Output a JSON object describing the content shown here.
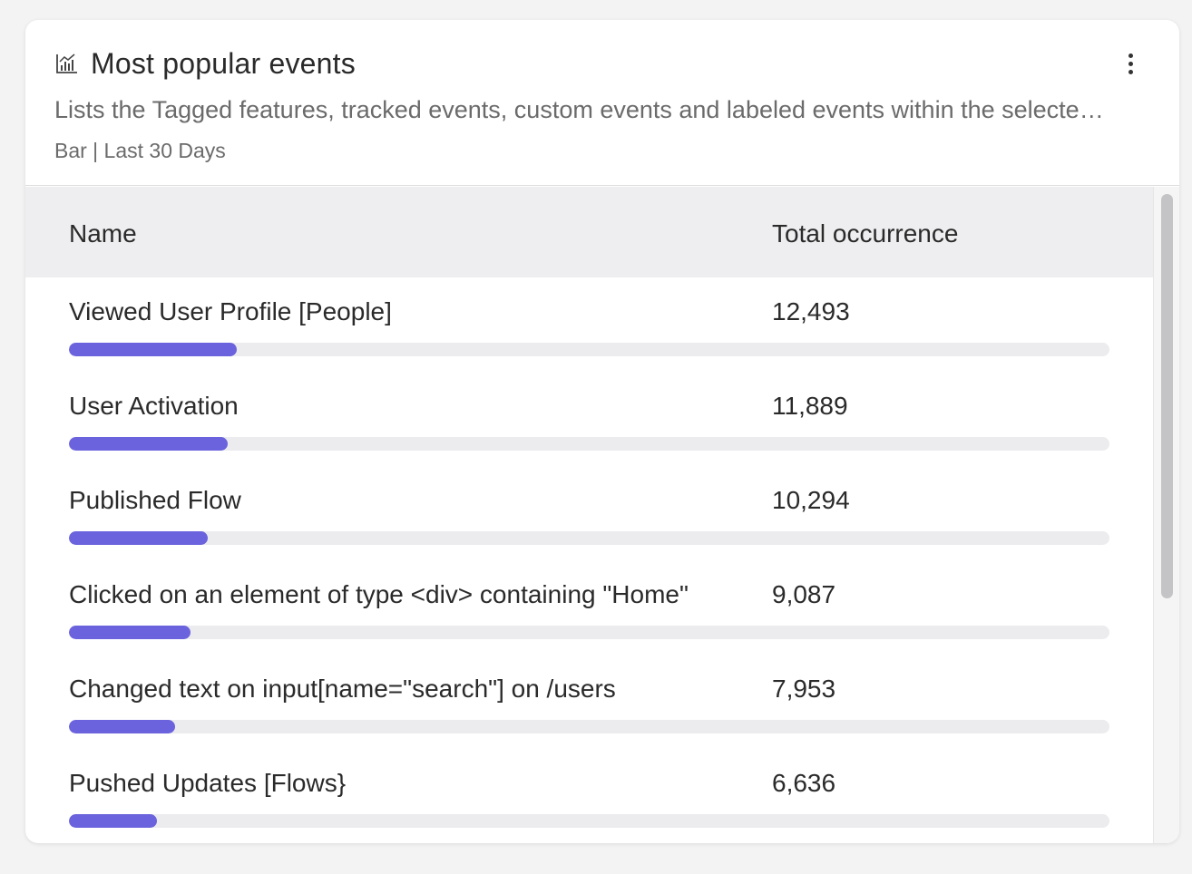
{
  "card": {
    "title": "Most popular events",
    "description": "Lists the Tagged features, tracked events, custom events and labeled events within the selected date range, sorted by total occurrence",
    "meta": "Bar | Last 30 Days",
    "icons": {
      "chart": "bar-chart-icon",
      "menu": "more-vertical-icon"
    }
  },
  "table": {
    "columns": {
      "name": "Name",
      "total": "Total occurrence"
    },
    "rows": [
      {
        "name": "Viewed User Profile [People]",
        "total": "12,493",
        "fill": 0.161
      },
      {
        "name": "User Activation",
        "total": "11,889",
        "fill": 0.153
      },
      {
        "name": "Published Flow",
        "total": "10,294",
        "fill": 0.133
      },
      {
        "name": "Clicked on an element of type <div> containing \"Home\"",
        "total": "9,087",
        "fill": 0.117
      },
      {
        "name": "Changed text on input[name=\"search\"] on /users",
        "total": "7,953",
        "fill": 0.102
      },
      {
        "name": "Pushed Updates [Flows}",
        "total": "6,636",
        "fill": 0.085
      }
    ]
  },
  "colors": {
    "bar_fill": "#6a63dd",
    "bar_track": "#ececee",
    "header_bg": "#eeeef0"
  }
}
